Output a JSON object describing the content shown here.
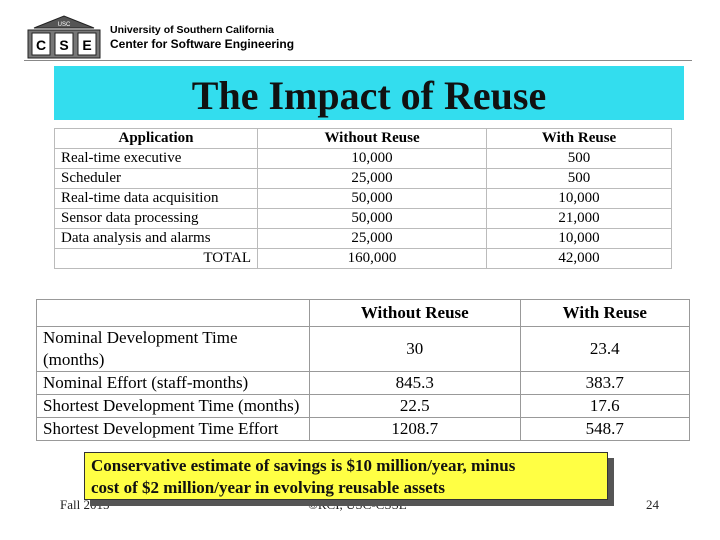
{
  "header": {
    "org_line1": "University of Southern California",
    "org_line2": "Center for Software Engineering",
    "logo_letters": [
      "C",
      "S",
      "E"
    ],
    "logo_top": "USC"
  },
  "title": "The Impact of Reuse",
  "table1": {
    "headers": [
      "Application",
      "Without Reuse",
      "With Reuse"
    ],
    "rows": [
      [
        "Real-time executive",
        "10,000",
        "500"
      ],
      [
        "Scheduler",
        "25,000",
        "500"
      ],
      [
        "Real-time data acquisition",
        "50,000",
        "10,000"
      ],
      [
        "Sensor data processing",
        "50,000",
        "21,000"
      ],
      [
        "Data analysis and alarms",
        "25,000",
        "10,000"
      ]
    ],
    "total": [
      "TOTAL",
      "160,000",
      "42,000"
    ]
  },
  "table2": {
    "headers": [
      "",
      "Without Reuse",
      "With Reuse"
    ],
    "rows": [
      [
        "Nominal Development Time (months)",
        "30",
        "23.4"
      ],
      [
        "Nominal Effort (staff-months)",
        "845.3",
        "383.7"
      ],
      [
        "Shortest Development Time (months)",
        "22.5",
        "17.6"
      ],
      [
        "Shortest Development Time Effort",
        "1208.7",
        "548.7"
      ]
    ]
  },
  "callout": {
    "line1": "Conservative estimate of savings is $10 million/year, minus",
    "line2": "cost of $2 million/year in evolving reusable assets"
  },
  "footer": {
    "left": "Fall 2015",
    "center": "©RCI, USC-CSSE",
    "right": "24"
  },
  "colors": {
    "title_band": "#33ddee",
    "callout": "#ffff44"
  }
}
